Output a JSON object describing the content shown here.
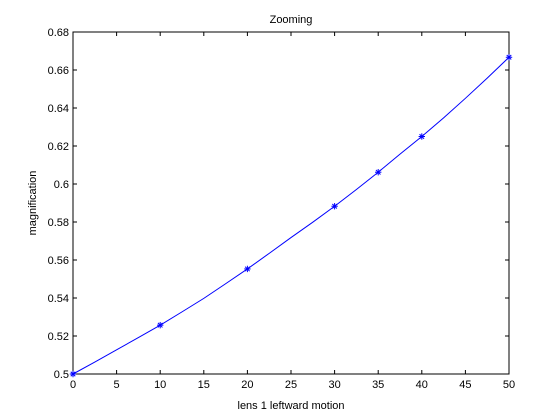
{
  "chart_data": {
    "type": "line",
    "title": "Zooming",
    "xlabel": "lens 1 leftward motion",
    "ylabel": "magnification",
    "xlim": [
      0,
      50
    ],
    "ylim": [
      0.5,
      0.68
    ],
    "grid": false,
    "xticks": [
      "0",
      "5",
      "10",
      "15",
      "20",
      "25",
      "30",
      "35",
      "40",
      "45",
      "50"
    ],
    "yticks": [
      "0.5",
      "0.52",
      "0.54",
      "0.56",
      "0.58",
      "0.6",
      "0.62",
      "0.64",
      "0.66",
      "0.68"
    ],
    "line_color": "#0000ff",
    "series": [
      {
        "curve_x": [
          0,
          2.5,
          5,
          7.5,
          10,
          12.5,
          15,
          17.5,
          20,
          22.5,
          25,
          27.5,
          30,
          32.5,
          35,
          37.5,
          40,
          42.5,
          45,
          47.5,
          50
        ],
        "curve_y": [
          0.5,
          0.5063,
          0.5127,
          0.5192,
          0.5257,
          0.5327,
          0.5398,
          0.5475,
          0.5553,
          0.5635,
          0.5718,
          0.5799,
          0.5883,
          0.5971,
          0.6062,
          0.6157,
          0.625,
          0.6348,
          0.6451,
          0.6557,
          0.6667
        ],
        "marker_x": [
          0,
          10,
          20,
          30,
          35,
          40,
          50
        ],
        "marker_y": [
          0.5,
          0.5257,
          0.5553,
          0.5883,
          0.6062,
          0.625,
          0.6667
        ],
        "marker": "*"
      }
    ]
  }
}
